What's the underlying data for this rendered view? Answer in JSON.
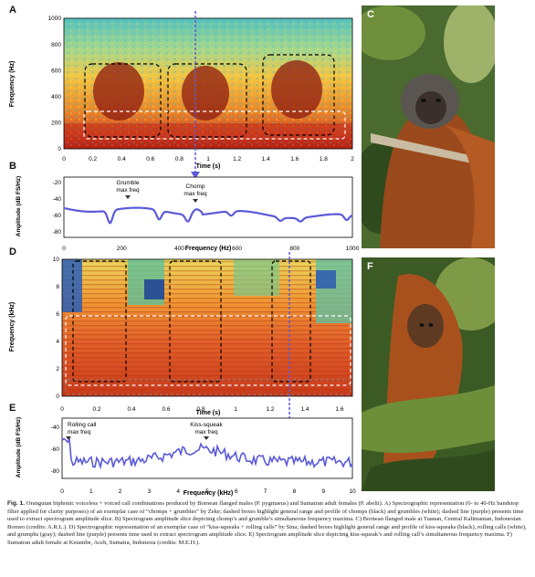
{
  "panels": {
    "a": {
      "letter": "A",
      "y_label": "Frequency (Hz)",
      "x_label": "Time (s)",
      "y_ticks": [
        "1000",
        "800",
        "600",
        "400",
        "200",
        "0"
      ],
      "x_ticks": [
        "0",
        "0.2",
        "0.4",
        "0.6",
        "0.8",
        "1",
        "1.2",
        "1.4",
        "1.6",
        "1.8",
        "2"
      ]
    },
    "b": {
      "letter": "B",
      "y_label": "Amplitude (dB FS/Hz)",
      "x_label": "Frequency (Hz)",
      "y_ticks": [
        "-20",
        "-40",
        "-60",
        "-80"
      ],
      "x_ticks": [
        "0",
        "200",
        "400",
        "600",
        "800",
        "1000"
      ],
      "ann1": [
        "Grumble",
        "max freq"
      ],
      "ann2": [
        "Chomp",
        "max freq"
      ]
    },
    "c": {
      "letter": "C"
    },
    "d": {
      "letter": "D",
      "y_label": "Frequency (kHz)",
      "x_label": "Time (s)",
      "y_ticks": [
        "10",
        "8",
        "6",
        "4",
        "2",
        "0"
      ],
      "x_ticks": [
        "0",
        "0.2",
        "0.4",
        "0.6",
        "0.8",
        "1",
        "1.2",
        "1.4",
        "1.6"
      ]
    },
    "e": {
      "letter": "E",
      "y_label": "Amplitude (dB FS/Hz)",
      "x_label": "Frequency (kHz)",
      "y_ticks": [
        "-40",
        "-60",
        "-80"
      ],
      "x_ticks": [
        "0",
        "1",
        "2",
        "3",
        "4",
        "5",
        "6",
        "7",
        "8",
        "9",
        "10"
      ],
      "ann1": [
        "Rolling call",
        "max freq"
      ],
      "ann2": [
        "Kiss-squeak",
        "max freq"
      ]
    },
    "f": {
      "letter": "F"
    }
  },
  "caption": {
    "fig": "Fig. 1.",
    "text": "Orangutan biphonic voiceless + voiced call combinations produced by Bornean flanged males (P. pygmaeus) and Sumatran adult females (P. abelii). A) Spectrographic representation (0- to 40-Hz bandstop filter applied for clarity purposes) of an exemplar case of “chomps + grumbles” by Zeke; dashed boxes highlight general range and profile of chomps (black) and grumbles (white); dashed line (purple) presents time used to extract spectrogram amplitude slice. B) Spectrogram amplitude slice depicting chomp’s and grumble’s simultaneous frequency maxima. C) Bornean flanged male at Tuanan, Central Kalimantan, Indonesian Borneo (credits: A.R.L.). D) Spectrographic representation of an exemplar case of “kiss-squeaks + rolling calls” by Sina; dashed boxes highlight general range and profile of kiss-squeaks (black), rolling calls (white), and grumphs (gray); dashed line (purple) presents time used to extract spectrogram amplitude slice. E) Spectrogram amplitude slice depicting kiss-squeak’s and rolling call’s simultaneous frequency maxima. F) Sumatran adult female at Ketambe, Aceh, Sumatra, Indonesia (credits: M.E.H.)."
  },
  "colors": {
    "curve": "#5a5ad8",
    "marker": "#5a5ad8"
  }
}
